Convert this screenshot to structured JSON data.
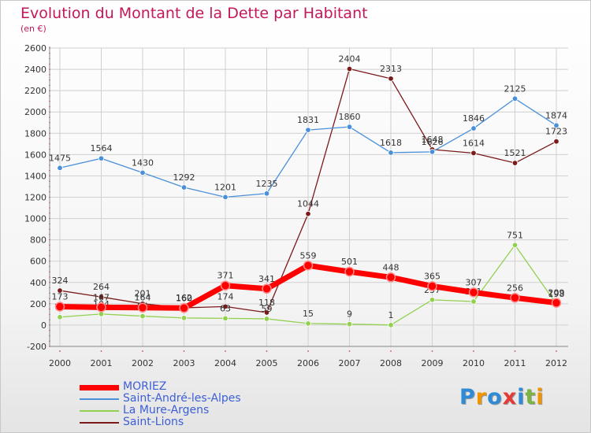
{
  "title": "Evolution du Montant de la Dette par Habitant",
  "subtitle": "(en €)",
  "logo": {
    "text": "Proxiti",
    "colors": [
      "#2e8bd8",
      "#f29400",
      "#2e8bd8",
      "#e53935",
      "#2e8bd8",
      "#7cb342",
      "#f29400"
    ]
  },
  "chart_data": {
    "type": "line",
    "x": [
      "2000",
      "2001",
      "2002",
      "2003",
      "2004",
      "2005",
      "2006",
      "2007",
      "2008",
      "2009",
      "2010",
      "2011",
      "2012"
    ],
    "yticks": [
      "2600",
      "2400",
      "2200",
      "2000",
      "1800",
      "1600",
      "1400",
      "1200",
      "1000",
      "800",
      "600",
      "400",
      "200",
      "0",
      "-200"
    ],
    "ylim": [
      -200,
      2600
    ],
    "grid": true,
    "legend_position": "bottom-left",
    "series": [
      {
        "name": "Saint-Lions",
        "color": "#7a1a1a",
        "values": [
          324,
          264,
          201,
          162,
          174,
          118,
          1044,
          2404,
          2313,
          1648,
          1614,
          1521,
          1723
        ],
        "labels": [
          "324",
          "264",
          "201",
          "162",
          "174",
          "118",
          "1044",
          "2404",
          "2313",
          "1648",
          "1614",
          "1521",
          "1723"
        ]
      },
      {
        "name": "La Mure-Argens",
        "color": "#92d050",
        "values": [
          75,
          104,
          84,
          67,
          63,
          59,
          15,
          9,
          1,
          237,
          221,
          751,
          198
        ],
        "labels": [
          "75",
          "104",
          "84",
          "67",
          "63",
          "59",
          "15",
          "9",
          "1",
          "237",
          "221",
          "751",
          "198"
        ]
      },
      {
        "name": "Saint-André-les-Alpes",
        "color": "#4a90d9",
        "values": [
          1475,
          1564,
          1430,
          1292,
          1201,
          1235,
          1831,
          1860,
          1618,
          1626,
          1846,
          2125,
          1874
        ],
        "labels": [
          "1475",
          "1564",
          "1430",
          "1292",
          "1201",
          "1235",
          "1831",
          "1860",
          "1618",
          "1626",
          "1846",
          "2125",
          "1874"
        ]
      },
      {
        "name": "MORIEZ",
        "color": "#ff0000",
        "values": [
          173,
          167,
          164,
          160,
          371,
          341,
          559,
          501,
          448,
          365,
          307,
          256,
          209
        ],
        "labels": [
          "173",
          "167",
          "164",
          "160",
          "371",
          "341",
          "559",
          "501",
          "448",
          "365",
          "307",
          "256",
          "209"
        ]
      }
    ],
    "legend": [
      "MORIEZ",
      "Saint-André-les-Alpes",
      "La Mure-Argens",
      "Saint-Lions"
    ]
  }
}
